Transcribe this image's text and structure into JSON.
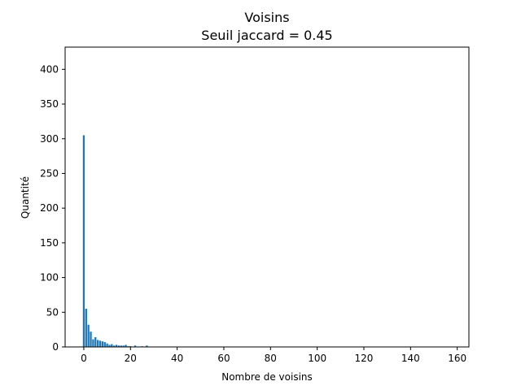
{
  "chart_data": {
    "type": "bar",
    "title": "Voisins",
    "subtitle": "Seuil jaccard = 0.45",
    "xlabel": "Nombre de voisins",
    "ylabel": "Quantité",
    "xlim": [
      -8,
      165
    ],
    "ylim": [
      0,
      432
    ],
    "xticks": [
      0,
      20,
      40,
      60,
      80,
      100,
      120,
      140,
      160
    ],
    "yticks": [
      0,
      50,
      100,
      150,
      200,
      250,
      300,
      350,
      400
    ],
    "grid": false,
    "bar_color": "#1f77b4",
    "x": [
      0,
      1,
      2,
      3,
      4,
      5,
      6,
      7,
      8,
      9,
      10,
      11,
      12,
      13,
      14,
      15,
      16,
      17,
      18,
      19,
      20,
      22,
      25,
      27
    ],
    "values": [
      305,
      55,
      32,
      22,
      11,
      14,
      10,
      9,
      8,
      7,
      5,
      3,
      4,
      2,
      3,
      2,
      2,
      2,
      3,
      1,
      1,
      2,
      1,
      2
    ]
  }
}
